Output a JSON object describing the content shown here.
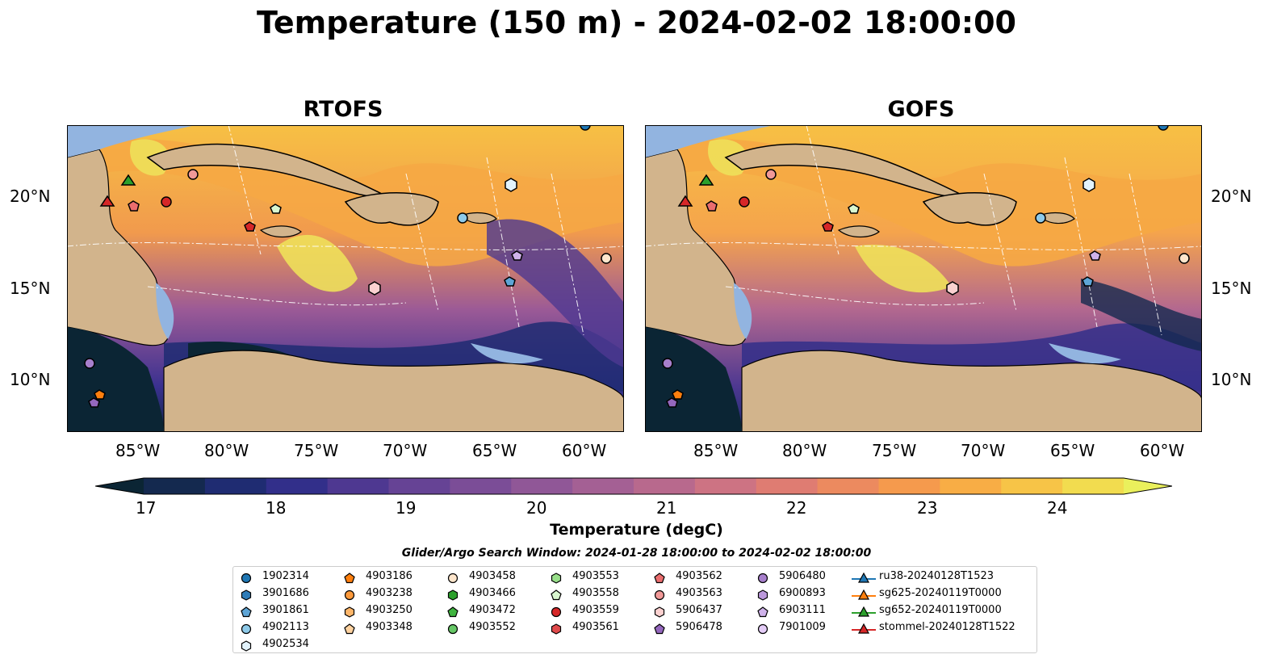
{
  "title": "Temperature (150 m) - 2024-02-02 18:00:00",
  "panels": [
    {
      "title": "RTOFS"
    },
    {
      "title": "GOFS"
    }
  ],
  "latitude_labels": [
    "20°N",
    "15°N",
    "10°N"
  ],
  "longitude_labels": [
    "85°W",
    "80°W",
    "75°W",
    "70°W",
    "65°W",
    "60°W"
  ],
  "colorbar": {
    "label": "Temperature (degC)",
    "ticks": [
      "17",
      "18",
      "19",
      "20",
      "21",
      "22",
      "23",
      "24"
    ],
    "min": 16.75,
    "max": 24.5,
    "step": 0.5,
    "extend": "both",
    "colors": [
      "#0b2534",
      "#14294f",
      "#1f2c72",
      "#322f8a",
      "#4e3891",
      "#664395",
      "#7b4d97",
      "#905797",
      "#a46094",
      "#b8698d",
      "#cd7383",
      "#df7c72",
      "#ec8a5f",
      "#f59a4d",
      "#f8ad45",
      "#f7c447",
      "#f2dc4f",
      "#eaf05c"
    ]
  },
  "search_window": "Glider/Argo Search Window: 2024-01-28 18:00:00 to 2024-02-02 18:00:00",
  "legend": [
    {
      "label": "1902314",
      "shape": "circle",
      "color": "#1f77b4"
    },
    {
      "label": "3901686",
      "shape": "hexagon",
      "color": "#2e7cb8"
    },
    {
      "label": "3901861",
      "shape": "pentagon",
      "color": "#5ea5d6"
    },
    {
      "label": "4902113",
      "shape": "circle",
      "color": "#8ecae9"
    },
    {
      "label": "4902534",
      "shape": "hexagon",
      "color": "#e2f3fc"
    },
    {
      "label": "4903186",
      "shape": "pentagon",
      "color": "#ff7f0e"
    },
    {
      "label": "4903238",
      "shape": "circle",
      "color": "#fd9a3c"
    },
    {
      "label": "4903250",
      "shape": "hexagon",
      "color": "#fdb66a"
    },
    {
      "label": "4903348",
      "shape": "pentagon",
      "color": "#fed2a0"
    },
    {
      "label": "4903458",
      "shape": "circle",
      "color": "#ffe6cc"
    },
    {
      "label": "4903466",
      "shape": "hexagon",
      "color": "#2ca02c"
    },
    {
      "label": "4903472",
      "shape": "pentagon",
      "color": "#3fb43f"
    },
    {
      "label": "4903552",
      "shape": "circle",
      "color": "#66c766"
    },
    {
      "label": "4903553",
      "shape": "hexagon",
      "color": "#98df8a"
    },
    {
      "label": "4903558",
      "shape": "pentagon",
      "color": "#d9f7d0"
    },
    {
      "label": "4903559",
      "shape": "circle",
      "color": "#d62728"
    },
    {
      "label": "4903561",
      "shape": "hexagon",
      "color": "#e04a4b"
    },
    {
      "label": "4903562",
      "shape": "pentagon",
      "color": "#ea6d6e"
    },
    {
      "label": "4903563",
      "shape": "circle",
      "color": "#f19998"
    },
    {
      "label": "5906437",
      "shape": "hexagon",
      "color": "#fbd1d0"
    },
    {
      "label": "5906478",
      "shape": "pentagon",
      "color": "#9467bd"
    },
    {
      "label": "5906480",
      "shape": "circle",
      "color": "#a77fcc"
    },
    {
      "label": "6900893",
      "shape": "hexagon",
      "color": "#bb98db"
    },
    {
      "label": "6903111",
      "shape": "pentagon",
      "color": "#cfb2ea"
    },
    {
      "label": "7901009",
      "shape": "circle",
      "color": "#e4ccf7"
    },
    {
      "label": "ru38-20240128T1523",
      "shape": "triangle-line",
      "color": "#1f77b4"
    },
    {
      "label": "sg625-20240119T0000",
      "shape": "triangle-line",
      "color": "#ff7f0e"
    },
    {
      "label": "sg652-20240119T0000",
      "shape": "triangle-line",
      "color": "#2ca02c"
    },
    {
      "label": "stommel-20240128T1522",
      "shape": "triangle-line",
      "color": "#d62728"
    }
  ]
}
